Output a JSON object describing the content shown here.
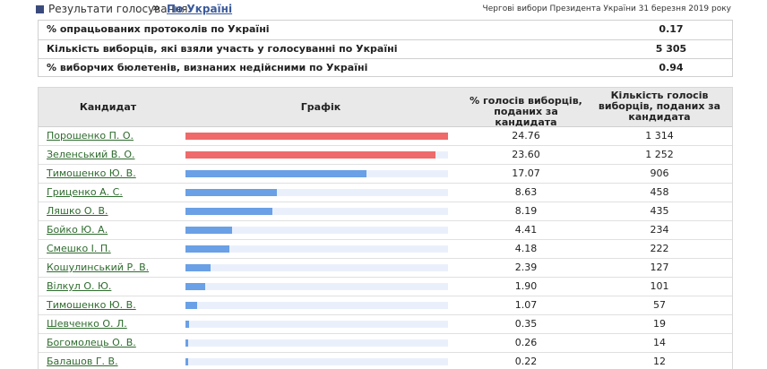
{
  "breadcrumb": {
    "root": "Результати голосування",
    "separator": "»",
    "current": "По Україні"
  },
  "election_title": "Чергові вибори Президента України 31 березня 2019 року",
  "summary": [
    {
      "label": "% опрацьованих протоколів по Україні",
      "value": "0.17"
    },
    {
      "label": "Кількість виборців, які взяли участь у голосуванні по Україні",
      "value": "5 305"
    },
    {
      "label": "% виборчих бюлетенів, визнаних недійсними по Україні",
      "value": "0.94"
    }
  ],
  "table": {
    "headers": {
      "candidate": "Кандидат",
      "chart": "Графік",
      "pct": "% голосів виборців, поданих за кандидата",
      "count": "Кількість голосів виборців, поданих за кандидата"
    },
    "colors": {
      "leader": "#ef6a6a",
      "other": "#6aa0e6",
      "track": "#eaf0fb"
    },
    "scale_max_pct": 24.76,
    "rows": [
      {
        "name": "Порошенко П. О.",
        "pct": "24.76",
        "count": "1 314",
        "leader": true
      },
      {
        "name": "Зеленський В. О.",
        "pct": "23.60",
        "count": "1 252",
        "leader": true
      },
      {
        "name": "Тимошенко Ю. В.",
        "pct": "17.07",
        "count": "906",
        "leader": false
      },
      {
        "name": "Гриценко А. С.",
        "pct": "8.63",
        "count": "458",
        "leader": false
      },
      {
        "name": "Ляшко О. В.",
        "pct": "8.19",
        "count": "435",
        "leader": false
      },
      {
        "name": "Бойко Ю. А.",
        "pct": "4.41",
        "count": "234",
        "leader": false
      },
      {
        "name": "Смешко І. П.",
        "pct": "4.18",
        "count": "222",
        "leader": false
      },
      {
        "name": "Кошулинський Р. В.",
        "pct": "2.39",
        "count": "127",
        "leader": false
      },
      {
        "name": "Вілкул О. Ю.",
        "pct": "1.90",
        "count": "101",
        "leader": false
      },
      {
        "name": "Тимошенко Ю. В.",
        "pct": "1.07",
        "count": "57",
        "leader": false
      },
      {
        "name": "Шевченко О. Л.",
        "pct": "0.35",
        "count": "19",
        "leader": false
      },
      {
        "name": "Богомолець О. В.",
        "pct": "0.26",
        "count": "14",
        "leader": false
      },
      {
        "name": "Балашов Г. В.",
        "pct": "0.22",
        "count": "12",
        "leader": false
      }
    ]
  }
}
